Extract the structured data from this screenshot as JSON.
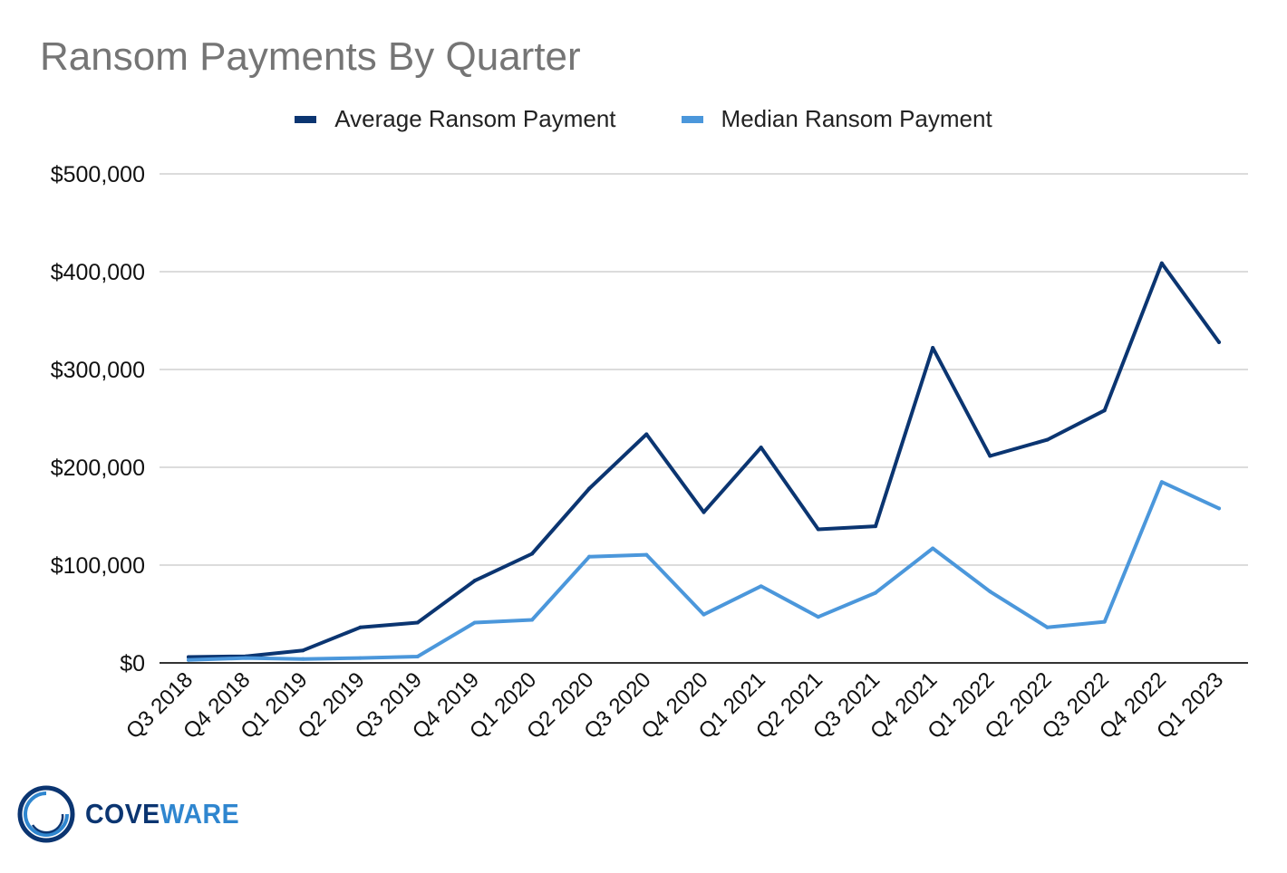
{
  "colors": {
    "average": "#0b3571",
    "median": "#4b97db",
    "grid": "#d0d0d0",
    "axis": "#333333",
    "title": "#757575",
    "logo_dark": "#0b3571",
    "logo_light": "#2f86cf"
  },
  "logo": {
    "part1": "COVE",
    "part2": "WARE"
  },
  "chart_data": {
    "type": "line",
    "title": "Ransom Payments By Quarter",
    "xlabel": "",
    "ylabel": "",
    "ylim": [
      0,
      500000
    ],
    "yticks": [
      0,
      100000,
      200000,
      300000,
      400000,
      500000
    ],
    "ytick_labels": [
      "$0",
      "$100,000",
      "$200,000",
      "$300,000",
      "$400,000",
      "$500,000"
    ],
    "grid": true,
    "legend_position": "top",
    "categories": [
      "Q3 2018",
      "Q4 2018",
      "Q1 2019",
      "Q2 2019",
      "Q3 2019",
      "Q4 2019",
      "Q1 2020",
      "Q2 2020",
      "Q3 2020",
      "Q4 2020",
      "Q1 2021",
      "Q2 2021",
      "Q3 2021",
      "Q4 2021",
      "Q1 2022",
      "Q2 2022",
      "Q3 2022",
      "Q4 2022",
      "Q1 2023"
    ],
    "series": [
      {
        "name": "Average Ransom Payment",
        "color": "#0b3571",
        "values": [
          5973,
          6733,
          12762,
          36295,
          41198,
          84116,
          111605,
          178254,
          233817,
          154108,
          220298,
          136576,
          139739,
          322168,
          211529,
          228125,
          258143,
          408644,
          327883
        ]
      },
      {
        "name": "Median Ransom Payment",
        "color": "#4b97db",
        "values": [
          3000,
          5000,
          4000,
          5000,
          6500,
          41179,
          44021,
          108650,
          110532,
          49450,
          78398,
          47008,
          71674,
          117116,
          73000,
          36360,
          42000,
          185000,
          158000
        ]
      }
    ]
  }
}
